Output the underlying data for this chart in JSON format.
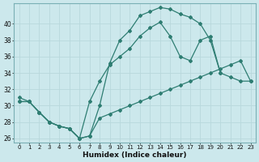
{
  "xlabel": "Humidex (Indice chaleur)",
  "bg_color": "#cce8ec",
  "line_color": "#2e7d72",
  "grid_color": "#b8d8dc",
  "ylim": [
    25.5,
    42.5
  ],
  "xlim": [
    -0.5,
    23.5
  ],
  "yticks": [
    26,
    28,
    30,
    32,
    34,
    36,
    38,
    40
  ],
  "xticks": [
    0,
    1,
    2,
    3,
    4,
    5,
    6,
    7,
    8,
    9,
    10,
    11,
    12,
    13,
    14,
    15,
    16,
    17,
    18,
    19,
    20,
    21,
    22,
    23
  ],
  "line1_x": [
    0,
    1,
    2,
    3,
    4,
    5,
    6,
    7,
    8,
    9,
    10,
    11,
    12,
    13,
    14,
    15,
    16,
    17,
    18,
    19,
    20
  ],
  "line1_y": [
    31.0,
    30.5,
    29.2,
    28.0,
    27.5,
    27.2,
    26.0,
    26.3,
    30.0,
    35.2,
    38.0,
    39.2,
    41.0,
    41.5,
    42.0,
    41.8,
    41.2,
    40.8,
    40.0,
    38.0,
    34.0
  ],
  "line2_x": [
    0,
    1,
    2,
    3,
    4,
    5,
    6,
    7,
    8,
    9,
    10,
    11,
    12,
    13,
    14,
    15,
    16,
    17,
    18,
    19,
    20,
    21,
    22,
    23
  ],
  "line2_y": [
    30.5,
    30.5,
    29.2,
    28.0,
    27.5,
    27.2,
    26.0,
    30.5,
    33.0,
    35.0,
    36.0,
    37.0,
    38.5,
    39.5,
    40.2,
    38.5,
    36.0,
    35.5,
    38.0,
    38.5,
    34.0,
    33.5,
    33.0,
    33.0
  ],
  "line3_x": [
    0,
    1,
    2,
    3,
    4,
    5,
    6,
    7,
    8,
    9,
    10,
    11,
    12,
    13,
    14,
    15,
    16,
    17,
    18,
    19,
    20,
    21,
    22,
    23
  ],
  "line3_y": [
    30.5,
    30.5,
    29.2,
    28.0,
    27.5,
    27.2,
    26.0,
    26.3,
    28.5,
    29.0,
    29.5,
    30.0,
    30.5,
    31.0,
    31.5,
    32.0,
    32.5,
    33.0,
    33.5,
    34.0,
    34.5,
    35.0,
    35.5,
    33.0
  ]
}
